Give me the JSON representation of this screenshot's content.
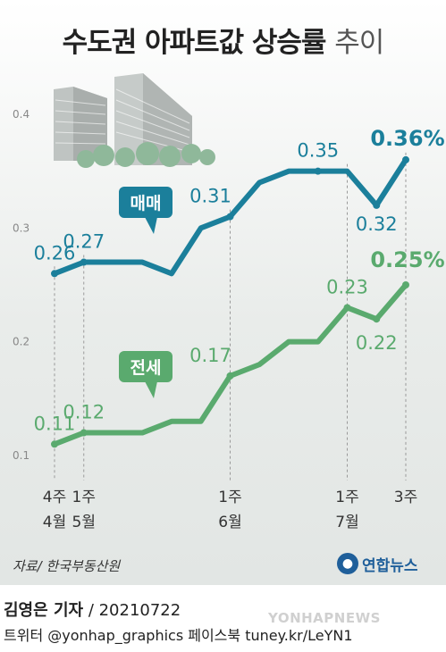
{
  "title": {
    "main": "수도권 아파트값 상승률",
    "sub": "추이"
  },
  "chart_data": {
    "type": "line",
    "ylim": [
      0.1,
      0.4
    ],
    "y_ticks": [
      "0.1",
      "0.2",
      "0.3",
      "0.4"
    ],
    "x_labels": [
      {
        "week": "4주",
        "month": "4월"
      },
      {
        "week": "1주",
        "month": "5월"
      },
      {
        "week": "1주",
        "month": "6월"
      },
      {
        "week": "1주",
        "month": "7월"
      },
      {
        "week": "3주",
        "month": ""
      }
    ],
    "series": [
      {
        "name": "매매",
        "color": "#1b7f9b",
        "values": [
          0.26,
          0.27,
          0.27,
          0.27,
          0.26,
          0.3,
          0.31,
          0.34,
          0.35,
          0.35,
          0.35,
          0.32,
          0.36
        ],
        "labels": [
          "0.26",
          "0.27",
          "",
          "",
          "",
          "",
          "0.31",
          "",
          "",
          "0.35",
          "",
          "0.32",
          "0.36%"
        ]
      },
      {
        "name": "전세",
        "color": "#5aaa6e",
        "values": [
          0.11,
          0.12,
          0.12,
          0.12,
          0.13,
          0.13,
          0.17,
          0.18,
          0.2,
          0.2,
          0.23,
          0.22,
          0.25
        ],
        "labels": [
          "0.11",
          "0.12",
          "",
          "",
          "",
          "",
          "0.17",
          "",
          "",
          "",
          "0.23",
          "0.22",
          "0.25%"
        ]
      }
    ]
  },
  "source": "자료/ 한국부동산원",
  "logo": "연합뉴스",
  "byline": {
    "name": "김영은 기자",
    "date": "/ 20210722"
  },
  "social": "트위터 @yonhap_graphics  페이스북 tuney.kr/LeYN1",
  "watermark": "YONHAPNEWS"
}
